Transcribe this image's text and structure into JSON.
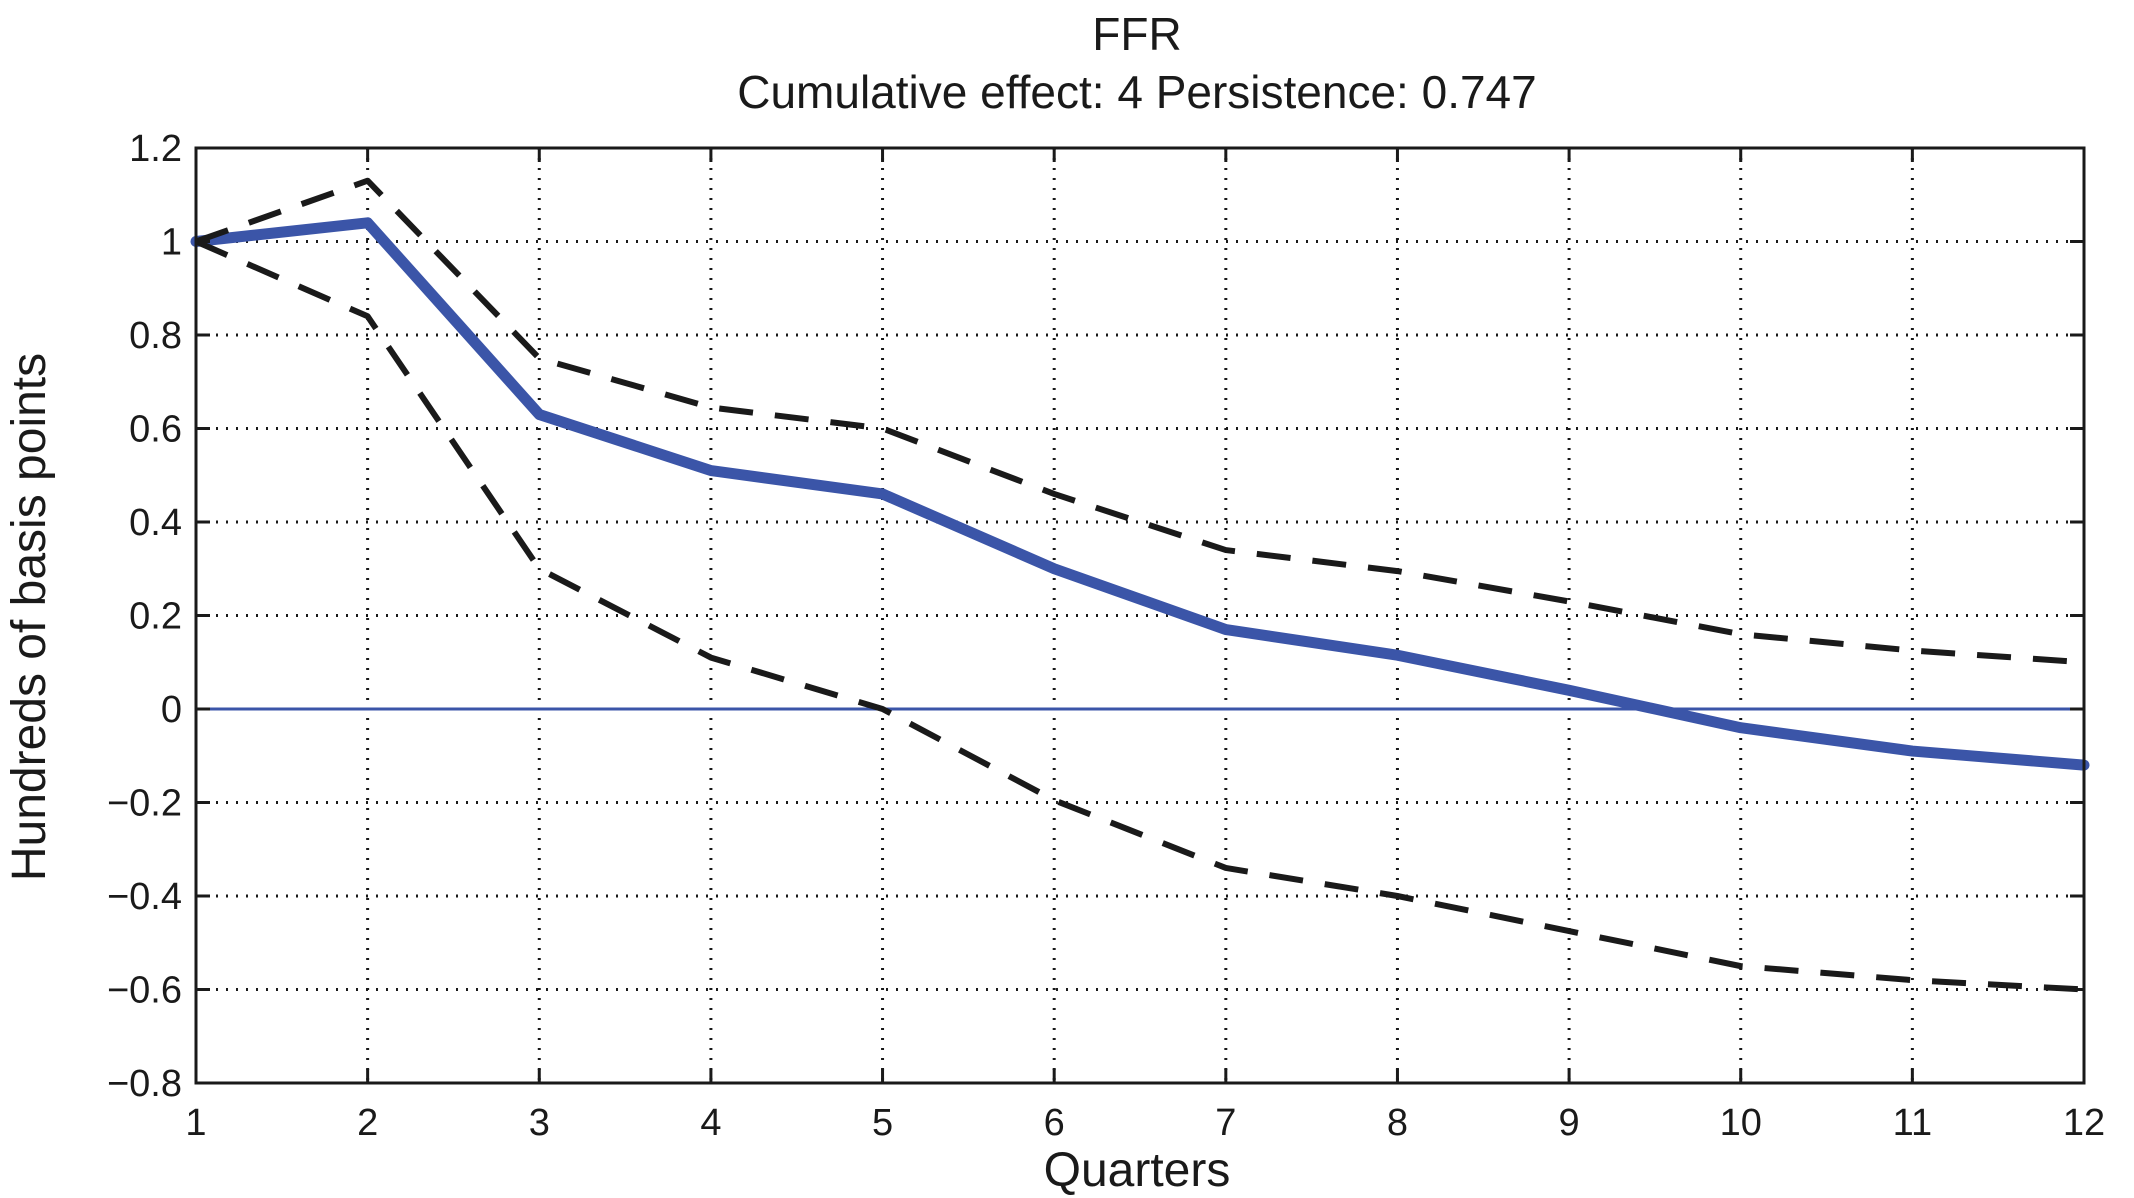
{
  "chart_data": {
    "type": "line",
    "title": "FFR",
    "subtitle": "Cumulative effect: 4  Persistence: 0.747",
    "xlabel": "Quarters",
    "ylabel": "Hundreds of basis points",
    "x": [
      1,
      2,
      3,
      4,
      5,
      6,
      7,
      8,
      9,
      10,
      11,
      12
    ],
    "xlim": [
      1,
      12
    ],
    "ylim": [
      -0.8,
      1.2
    ],
    "x_ticks": [
      1,
      2,
      3,
      4,
      5,
      6,
      7,
      8,
      9,
      10,
      11,
      12
    ],
    "y_ticks": [
      -0.8,
      -0.6,
      -0.4,
      -0.2,
      0,
      0.2,
      0.4,
      0.6,
      0.8,
      1,
      1.2
    ],
    "x_tick_labels": [
      "1",
      "2",
      "3",
      "4",
      "5",
      "6",
      "7",
      "8",
      "9",
      "10",
      "11",
      "12"
    ],
    "y_tick_labels": [
      "−0.8",
      "−0.6",
      "−0.4",
      "−0.2",
      "0",
      "0.2",
      "0.4",
      "0.6",
      "0.8",
      "1",
      "1.2"
    ],
    "grid": true,
    "zero_line": true,
    "series": [
      {
        "style": "solid",
        "color": "#3b55a8",
        "values": [
          1.0,
          1.04,
          0.63,
          0.51,
          0.46,
          0.3,
          0.17,
          0.115,
          0.04,
          -0.04,
          -0.09,
          -0.12
        ]
      },
      {
        "style": "dashed",
        "color": "#1a1a1a",
        "values": [
          1.0,
          1.13,
          0.75,
          0.645,
          0.6,
          0.46,
          0.34,
          0.295,
          0.23,
          0.16,
          0.125,
          0.1
        ]
      },
      {
        "style": "dashed",
        "color": "#1a1a1a",
        "values": [
          1.0,
          0.84,
          0.3,
          0.11,
          0.0,
          -0.195,
          -0.34,
          -0.4,
          -0.475,
          -0.55,
          -0.58,
          -0.6
        ]
      }
    ]
  }
}
